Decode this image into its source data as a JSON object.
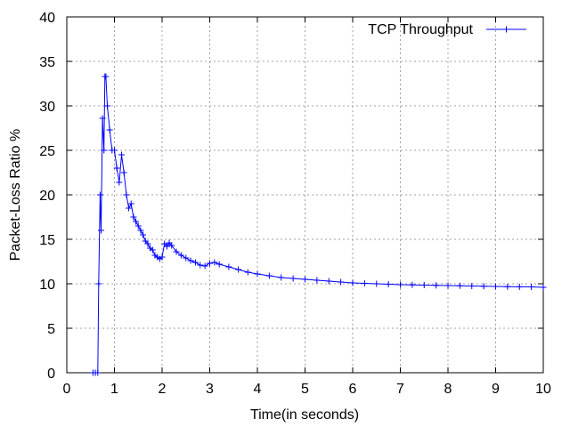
{
  "chart_data": {
    "type": "line",
    "title": "",
    "xlabel": "Time(in seconds)",
    "ylabel": "Packet-Loss Ratio %",
    "xlim": [
      0,
      10
    ],
    "ylim": [
      0,
      40
    ],
    "xticks": [
      0,
      1,
      2,
      3,
      4,
      5,
      6,
      7,
      8,
      9,
      10
    ],
    "yticks": [
      0,
      5,
      10,
      15,
      20,
      25,
      30,
      35,
      40
    ],
    "grid": true,
    "legend_position": "top-right",
    "series": [
      {
        "name": "TCP Throughput",
        "color": "#0000ff",
        "marker": "plus",
        "x": [
          0.55,
          0.6,
          0.65,
          0.67,
          0.7,
          0.72,
          0.75,
          0.78,
          0.8,
          0.82,
          0.85,
          0.9,
          0.95,
          1.0,
          1.05,
          1.1,
          1.15,
          1.2,
          1.25,
          1.3,
          1.35,
          1.4,
          1.45,
          1.5,
          1.55,
          1.6,
          1.65,
          1.7,
          1.75,
          1.8,
          1.85,
          1.9,
          1.95,
          2.0,
          2.05,
          2.1,
          2.15,
          2.2,
          2.3,
          2.4,
          2.5,
          2.6,
          2.7,
          2.8,
          2.9,
          3.0,
          3.1,
          3.2,
          3.4,
          3.6,
          3.8,
          4.0,
          4.25,
          4.5,
          4.75,
          5.0,
          5.25,
          5.5,
          5.75,
          6.0,
          6.25,
          6.5,
          6.75,
          7.0,
          7.25,
          7.5,
          7.75,
          8.0,
          8.25,
          8.5,
          8.75,
          9.0,
          9.25,
          9.5,
          9.75,
          10.0
        ],
        "y": [
          0,
          0,
          0,
          10,
          20,
          16,
          28.6,
          25,
          33.3,
          33.3,
          30,
          27.3,
          25,
          25,
          23,
          21.4,
          24.5,
          22.5,
          20,
          18.5,
          19,
          17.5,
          17,
          16.5,
          16,
          15.5,
          14.8,
          14.5,
          14,
          13.8,
          13.2,
          13,
          12.8,
          13,
          14.5,
          14.2,
          14.6,
          14.3,
          13.6,
          13.2,
          12.9,
          12.6,
          12.4,
          12.1,
          12.0,
          12.3,
          12.4,
          12.2,
          11.9,
          11.6,
          11.3,
          11.1,
          10.9,
          10.7,
          10.6,
          10.5,
          10.4,
          10.3,
          10.2,
          10.1,
          10.05,
          10.0,
          9.95,
          9.9,
          9.88,
          9.85,
          9.82,
          9.8,
          9.78,
          9.75,
          9.72,
          9.7,
          9.68,
          9.66,
          9.65,
          9.6
        ]
      }
    ]
  }
}
